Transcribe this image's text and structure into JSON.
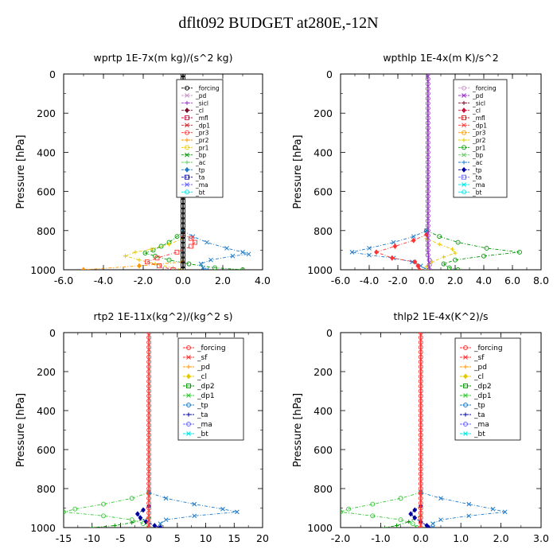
{
  "title": "dflt092  BUDGET at280E,-12N",
  "chart_data": [
    {
      "type": "line",
      "title": "wprtp  1E-7x(m kg)/(s^2 kg)",
      "ylabel": "Pressure [hPa]",
      "xlim": [
        -6,
        4
      ],
      "ylim": [
        1000,
        0
      ],
      "xticks": [
        -6,
        -4,
        -2,
        0,
        2,
        4
      ],
      "xticklabels": [
        "-6.0",
        "-4.0",
        "-2.0",
        "0.0",
        "2.0",
        "4.0"
      ],
      "yticks": [
        0,
        200,
        400,
        600,
        800,
        1000
      ],
      "yticklabels": [
        "0",
        "200",
        "400",
        "600",
        "800",
        "1000"
      ],
      "legend": [
        "_forcing",
        "_pd",
        "_sicl",
        "_cl",
        "_mfl",
        "_dp1",
        "_pr3",
        "_pr2",
        "_pr1",
        "_bp",
        "_ac",
        "_tp",
        "_ta",
        "_ma",
        "_bt"
      ],
      "legend_colors": [
        "#000000",
        "#c896c8",
        "#9632c8",
        "#7a0a28",
        "#c8143c",
        "#c81e1e",
        "#ff3232",
        "#ff9600",
        "#e6c800",
        "#009600",
        "#64c864",
        "#1e7ac8",
        "#0000a0",
        "#6464ff",
        "#00e6e6"
      ],
      "series": [
        {
          "name": "_ac",
          "color": "#009600",
          "p": [
            800,
            830,
            860,
            880,
            900,
            915,
            930,
            950,
            970,
            990,
            1000
          ],
          "v": [
            0,
            -0.3,
            -0.7,
            -1.1,
            -1.5,
            -1.9,
            -1.4,
            -0.7,
            0.3,
            1.6,
            3.0
          ]
        },
        {
          "name": "_tp",
          "color": "#1e7ac8",
          "p": [
            800,
            830,
            860,
            890,
            910,
            920,
            930,
            950,
            970,
            990,
            1000
          ],
          "v": [
            0,
            0.5,
            1.2,
            2.2,
            3.0,
            3.3,
            2.5,
            1.4,
            0.9,
            1.0,
            1.2
          ]
        },
        {
          "name": "_pr1",
          "color": "#e6c800",
          "p": [
            840,
            870,
            895,
            910,
            930,
            950,
            970,
            990,
            1000
          ],
          "v": [
            0,
            -0.7,
            -1.6,
            -2.4,
            -2.9,
            -2.2,
            -1.4,
            -0.5,
            0
          ]
        },
        {
          "name": "_bp",
          "color": "#ff9600",
          "p": [
            960,
            980,
            1000
          ],
          "v": [
            0,
            -2.2,
            -5.0
          ]
        },
        {
          "name": "_pr3",
          "color": "#ff3232",
          "p": [
            820,
            840,
            860,
            880,
            910,
            940,
            960,
            980,
            1000
          ],
          "v": [
            0,
            0.4,
            0.6,
            0.4,
            -0.3,
            -1.3,
            -1.8,
            -1.2,
            -0.5
          ]
        },
        {
          "name": "_bt",
          "color": "#000000",
          "p": [
            0,
            100,
            200,
            300,
            400,
            500,
            600,
            700,
            800,
            900,
            1000
          ],
          "v": [
            0,
            0,
            0,
            0,
            0,
            0,
            0,
            0,
            0,
            0,
            0
          ]
        }
      ]
    },
    {
      "type": "line",
      "title": "wpthlp  1E-4x(m K)/s^2",
      "ylabel": "Pressure [hPa]",
      "xlim": [
        -6,
        8
      ],
      "ylim": [
        1000,
        0
      ],
      "xticks": [
        -6,
        -4,
        -2,
        0,
        2,
        4,
        6,
        8
      ],
      "xticklabels": [
        "-6.0",
        "-4.0",
        "-2.0",
        "0.0",
        "2.0",
        "4.0",
        "6.0",
        "8.0"
      ],
      "yticks": [
        0,
        200,
        400,
        600,
        800,
        1000
      ],
      "yticklabels": [
        "0",
        "200",
        "400",
        "600",
        "800",
        "1000"
      ],
      "legend": [
        "_forcing",
        "_pd",
        "_sicl",
        "_cl",
        "_mfl",
        "_dp1",
        "_pr3",
        "_pr2",
        "_pr1",
        "_bp",
        "_ac",
        "_tp",
        "_ta",
        "_ma",
        "_bt"
      ],
      "legend_colors": [
        "#c896c8",
        "#9632c8",
        "#7a0a28",
        "#c8143c",
        "#c81e1e",
        "#ff3232",
        "#ff9600",
        "#e6c800",
        "#009600",
        "#64c864",
        "#1e7ac8",
        "#0000a0",
        "#6464ff",
        "#00e6e6",
        "#00e6e6"
      ],
      "series": [
        {
          "name": "_ac",
          "color": "#009600",
          "p": [
            800,
            830,
            860,
            890,
            910,
            930,
            950,
            970,
            990,
            1000
          ],
          "v": [
            0,
            0.9,
            2.2,
            4.2,
            6.5,
            4.0,
            2.0,
            1.2,
            1.6,
            2.2
          ]
        },
        {
          "name": "_tp",
          "color": "#1e7ac8",
          "p": [
            800,
            830,
            860,
            890,
            910,
            925,
            940,
            960,
            980,
            1000
          ],
          "v": [
            0,
            -0.9,
            -2.3,
            -4.0,
            -5.2,
            -4.0,
            -2.3,
            -1.0,
            -0.4,
            0
          ]
        },
        {
          "name": "_pr1",
          "color": "#e6c800",
          "p": [
            840,
            870,
            895,
            915,
            935,
            960,
            985,
            1000
          ],
          "v": [
            0,
            0.9,
            1.8,
            2.0,
            1.2,
            0.4,
            0,
            0
          ]
        },
        {
          "name": "_pr3",
          "color": "#ff3232",
          "p": [
            820,
            850,
            880,
            910,
            940,
            960,
            980,
            1000
          ],
          "v": [
            0,
            -0.9,
            -2.2,
            -3.5,
            -2.4,
            -0.8,
            -0.6,
            -0.5
          ]
        },
        {
          "name": "_cl",
          "color": "#9632c8",
          "p": [
            0,
            100,
            200,
            300,
            400,
            500,
            600,
            700,
            800,
            900,
            1000
          ],
          "v": [
            0.1,
            0.1,
            0.1,
            0.1,
            0.1,
            0.1,
            0.1,
            0.1,
            0.1,
            0.1,
            0.2
          ]
        }
      ]
    },
    {
      "type": "line",
      "title": "rtp2  1E-11x(kg^2)/(kg^2 s)",
      "ylabel": "Pressure [hPa]",
      "xlim": [
        -15,
        20
      ],
      "ylim": [
        1000,
        0
      ],
      "xticks": [
        -15,
        -10,
        -5,
        0,
        5,
        10,
        15,
        20
      ],
      "xticklabels": [
        "-15",
        "-10",
        "-5",
        "0",
        "5",
        "10",
        "15",
        "20"
      ],
      "yticks": [
        0,
        200,
        400,
        600,
        800,
        1000
      ],
      "yticklabels": [
        "0",
        "200",
        "400",
        "600",
        "800",
        "1000"
      ],
      "legend": [
        "_forcing",
        "_sf",
        "_pd",
        "_cl",
        "_dp2",
        "_dp1",
        "_tp",
        "_ta",
        "_ma",
        "_bt"
      ],
      "legend_colors": [
        "#ff3232",
        "#ff3232",
        "#ff9600",
        "#e6c800",
        "#009600",
        "#32c832",
        "#1e7ac8",
        "#0000a0",
        "#6464ff",
        "#00e6e6"
      ],
      "series": [
        {
          "name": "_dp1",
          "color": "#32c832",
          "p": [
            820,
            850,
            880,
            905,
            920,
            940,
            960,
            980,
            1000
          ],
          "v": [
            0,
            -3,
            -8,
            -13,
            -15,
            -8,
            -3,
            -1,
            0
          ]
        },
        {
          "name": "_tp",
          "color": "#1e7ac8",
          "p": [
            820,
            850,
            880,
            905,
            920,
            940,
            960,
            980,
            1000
          ],
          "v": [
            0,
            3,
            8,
            13,
            15.5,
            8,
            3,
            2,
            2
          ]
        },
        {
          "name": "_dp2",
          "color": "#009600",
          "p": [
            950,
            975,
            990,
            1000
          ],
          "v": [
            0,
            -3,
            -6,
            -10
          ]
        },
        {
          "name": "_ta",
          "color": "#0000a0",
          "p": [
            890,
            910,
            930,
            950,
            970,
            990,
            1000
          ],
          "v": [
            0,
            -1,
            -2,
            -1.5,
            -0.5,
            1,
            2
          ]
        },
        {
          "name": "_forcing",
          "color": "#ff3232",
          "p": [
            0,
            100,
            200,
            300,
            400,
            500,
            600,
            700,
            800,
            900,
            1000
          ],
          "v": [
            0,
            0,
            0,
            0,
            0,
            0,
            0,
            0,
            0,
            0,
            0
          ]
        }
      ]
    },
    {
      "type": "line",
      "title": "thlp2  1E-4x(K^2)/s",
      "ylabel": "Pressure [hPa]",
      "xlim": [
        -2,
        3
      ],
      "ylim": [
        1000,
        0
      ],
      "xticks": [
        -2,
        -1,
        0,
        1,
        2,
        3
      ],
      "xticklabels": [
        "-2.0",
        "-1.0",
        "0.0",
        "1.0",
        "2.0",
        "3.0"
      ],
      "yticks": [
        0,
        200,
        400,
        600,
        800,
        1000
      ],
      "yticklabels": [
        "0",
        "200",
        "400",
        "600",
        "800",
        "1000"
      ],
      "legend": [
        "_forcing",
        "_sf",
        "_pd",
        "_cl",
        "_dp2",
        "_dp1",
        "_tp",
        "_ta",
        "_ma",
        "_bt"
      ],
      "legend_colors": [
        "#ff3232",
        "#ff3232",
        "#ff9600",
        "#e6c800",
        "#009600",
        "#32c832",
        "#1e7ac8",
        "#0000a0",
        "#6464ff",
        "#00e6e6"
      ],
      "series": [
        {
          "name": "_dp1",
          "color": "#32c832",
          "p": [
            820,
            850,
            880,
            905,
            920,
            940,
            960,
            980,
            1000
          ],
          "v": [
            0,
            -0.5,
            -1.2,
            -1.8,
            -2.0,
            -1.2,
            -0.5,
            -0.2,
            -0.1
          ]
        },
        {
          "name": "_tp",
          "color": "#1e7ac8",
          "p": [
            820,
            850,
            880,
            905,
            920,
            940,
            960,
            980,
            1000
          ],
          "v": [
            0,
            0.5,
            1.2,
            1.8,
            2.1,
            1.2,
            0.5,
            0.3,
            0.3
          ]
        },
        {
          "name": "_dp2",
          "color": "#009600",
          "p": [
            940,
            970,
            990,
            1000
          ],
          "v": [
            0,
            -0.3,
            -0.6,
            -0.9
          ]
        },
        {
          "name": "_ta",
          "color": "#0000a0",
          "p": [
            890,
            910,
            930,
            950,
            970,
            990,
            1000
          ],
          "v": [
            0,
            -0.15,
            -0.25,
            -0.15,
            0,
            0.15,
            0.2
          ]
        },
        {
          "name": "_forcing",
          "color": "#ff3232",
          "p": [
            0,
            100,
            200,
            300,
            400,
            500,
            600,
            700,
            800,
            900,
            1000
          ],
          "v": [
            0,
            0,
            0,
            0,
            0,
            0,
            0,
            0,
            0,
            0,
            0
          ]
        }
      ]
    }
  ]
}
